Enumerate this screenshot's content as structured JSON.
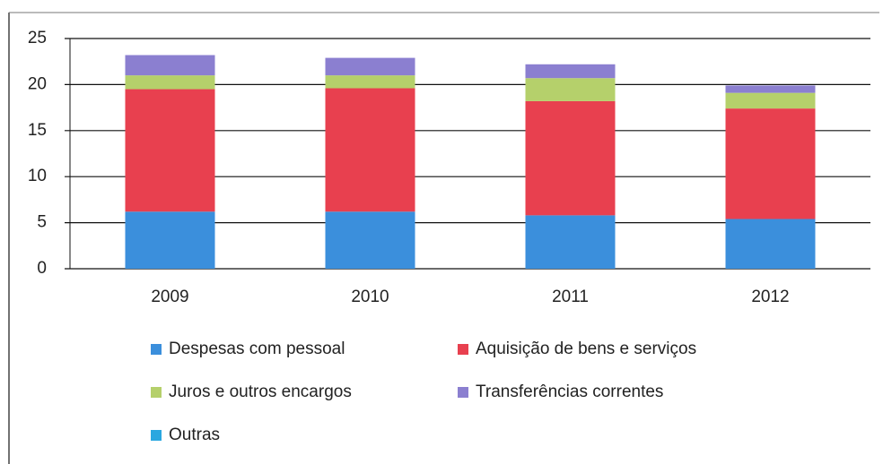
{
  "chart_data": {
    "type": "stacked_bar",
    "categories": [
      "2009",
      "2010",
      "2011",
      "2012"
    ],
    "series": [
      {
        "name": "Despesas com pessoal",
        "color": "#3b8fdc",
        "values": [
          6.2,
          6.2,
          5.8,
          5.4
        ]
      },
      {
        "name": "Aquisição de bens e serviços",
        "color": "#e8404f",
        "values": [
          13.3,
          13.4,
          12.4,
          12.0
        ]
      },
      {
        "name": "Juros e outros encargos",
        "color": "#b5d06b",
        "values": [
          1.5,
          1.4,
          2.5,
          1.7
        ]
      },
      {
        "name": "Transferências correntes",
        "color": "#8b7fd0",
        "values": [
          2.2,
          1.9,
          1.5,
          0.8
        ]
      },
      {
        "name": "Outras",
        "color": "#2aa7e0",
        "values": [
          0,
          0,
          0,
          0
        ]
      }
    ],
    "ylim": [
      0,
      25
    ],
    "yticks": [
      0,
      5,
      10,
      15,
      20,
      25
    ],
    "grid": true,
    "legend": "bottom"
  }
}
